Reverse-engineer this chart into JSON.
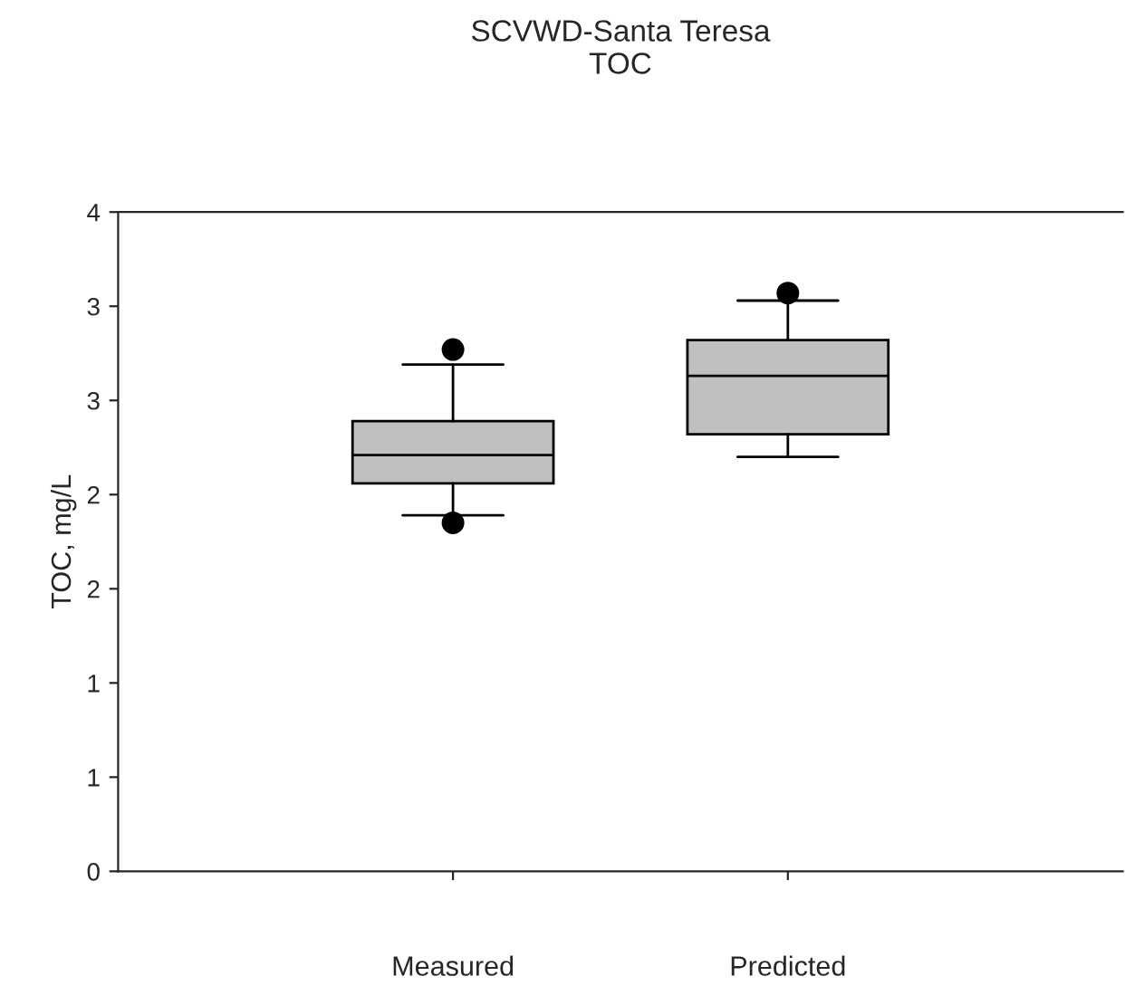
{
  "chart_data": {
    "type": "box",
    "title": "SCVWD-Santa Teresa\nTOC",
    "ylabel": "TOC, mg/L",
    "categories": [
      "Measured",
      "Predicted"
    ],
    "color": "#c0c0c0",
    "boxes": [
      {
        "low": 1.89,
        "q1": 2.06,
        "median": 2.21,
        "q3": 2.39,
        "high": 2.69,
        "outliers": [
          2.77,
          1.85
        ]
      },
      {
        "low": 2.2,
        "q1": 2.32,
        "median": 2.63,
        "q3": 2.82,
        "high": 3.03,
        "outliers": [
          3.07
        ]
      }
    ],
    "ylim": [
      0,
      3.5
    ],
    "yticks": [
      0,
      {
        "value": 0.5,
        "label": "1"
      },
      {
        "value": 1,
        "label": "1"
      },
      {
        "value": 1.5,
        "label": "2"
      },
      {
        "value": 2,
        "label": "2"
      },
      {
        "value": 2.5,
        "label": "3"
      },
      {
        "value": 3,
        "label": "3"
      },
      {
        "value": 3.5,
        "label": "4"
      }
    ],
    "grid": false,
    "legend": false
  }
}
